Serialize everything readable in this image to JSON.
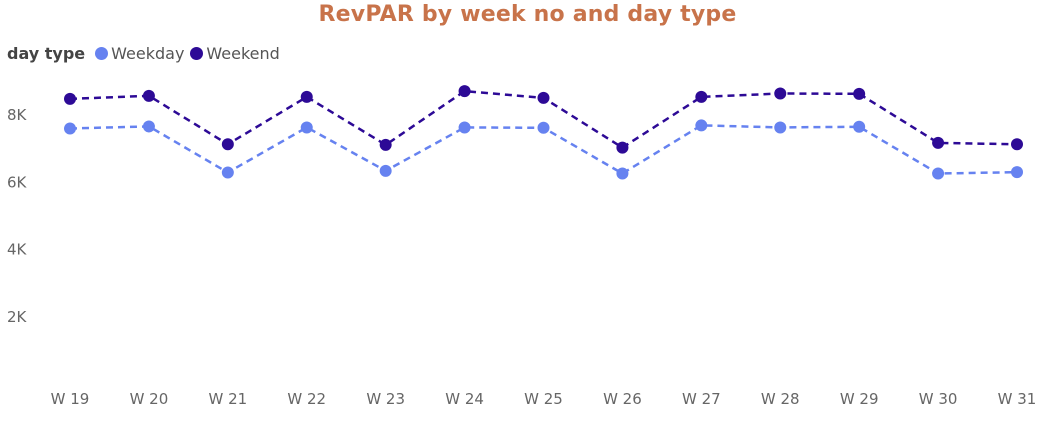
{
  "chart_data": {
    "type": "line",
    "title": "RevPAR by week no and day type",
    "legend_title": "day type",
    "legend_position": "top-left",
    "categories": [
      "W 19",
      "W 20",
      "W 21",
      "W 22",
      "W 23",
      "W 24",
      "W 25",
      "W 26",
      "W 27",
      "W 28",
      "W 29",
      "W 30",
      "W 31"
    ],
    "series": [
      {
        "name": "Weekday",
        "color": "#6682f0",
        "values": [
          7570,
          7630,
          6260,
          7600,
          6310,
          7600,
          7590,
          6230,
          7660,
          7600,
          7620,
          6230,
          6270
        ]
      },
      {
        "name": "Weekend",
        "color": "#2d0a96",
        "values": [
          8450,
          8540,
          7100,
          8510,
          7080,
          8680,
          8480,
          7000,
          8510,
          8610,
          8600,
          7140,
          7100
        ]
      }
    ],
    "y_ticks": [
      2000,
      4000,
      6000,
      8000
    ],
    "y_tick_labels": [
      "2K",
      "4K",
      "6K",
      "8K"
    ],
    "ylim": [
      0,
      9200
    ],
    "grid": false,
    "line_style": "dashed",
    "markers": true
  }
}
